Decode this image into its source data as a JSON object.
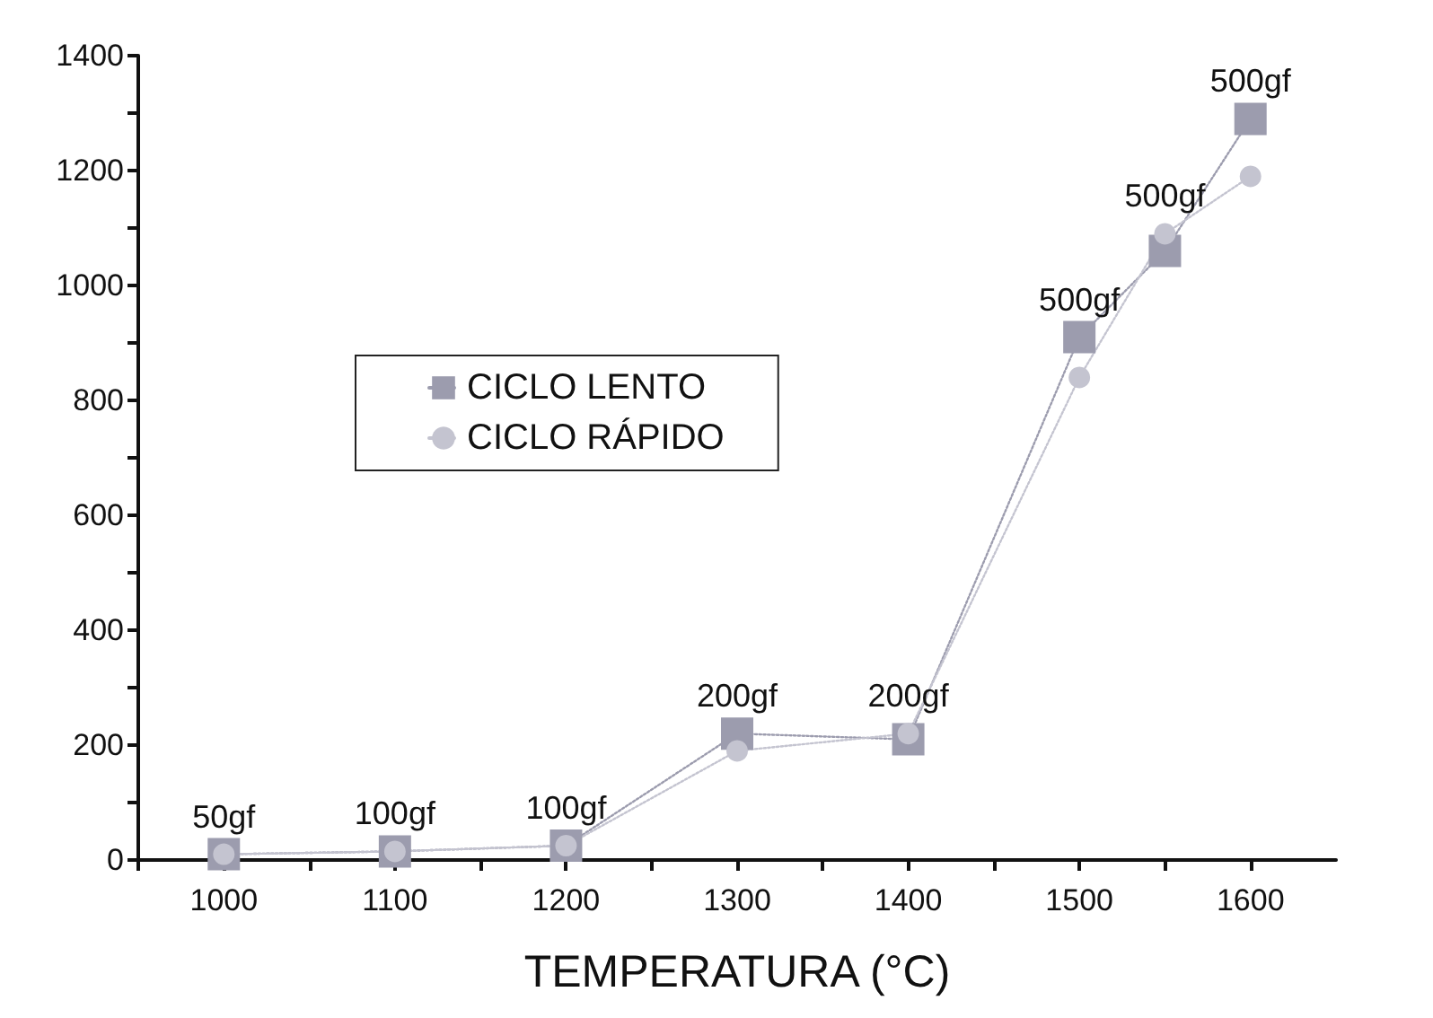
{
  "chart_data": {
    "type": "scatter",
    "xlabel": "TEMPERATURA (°C)",
    "x": [
      1000,
      1100,
      1200,
      1300,
      1400,
      1500,
      1550,
      1600
    ],
    "series": [
      {
        "name": "CICLO LENTO",
        "color": "#9c9cae",
        "marker": "square",
        "values": [
          10,
          15,
          25,
          220,
          210,
          910,
          1060,
          1290
        ]
      },
      {
        "name": "CICLO RÁPIDO",
        "color": "#c4c4d0",
        "marker": "circle",
        "values": [
          10,
          15,
          25,
          190,
          220,
          840,
          1090,
          1190
        ]
      }
    ],
    "line_style": "dotted",
    "legend": "left",
    "grid": false,
    "xlim": [
      950,
      1650
    ],
    "xticks": [
      {
        "value": 950,
        "label": null
      },
      1000,
      {
        "value": 1050,
        "label": null
      },
      1100,
      {
        "value": 1150,
        "label": null
      },
      1200,
      {
        "value": 1250,
        "label": null
      },
      1300,
      {
        "value": 1350,
        "label": null
      },
      1400,
      {
        "value": 1450,
        "label": null
      },
      1500,
      {
        "value": 1550,
        "label": null
      },
      1600
    ],
    "ylim": [
      0,
      1400
    ],
    "yticks": [
      0,
      {
        "value": 100,
        "label": null
      },
      200,
      {
        "value": 300,
        "label": null
      },
      400,
      {
        "value": 500,
        "label": null
      },
      600,
      {
        "value": 700,
        "label": null
      },
      800,
      {
        "value": 900,
        "label": null
      },
      1000,
      {
        "value": 1100,
        "label": null
      },
      1200,
      {
        "value": 1300,
        "label": null
      },
      1400
    ],
    "annotations": [
      {
        "text": "50gf",
        "x": 1000,
        "y": 10
      },
      {
        "text": "100gf",
        "x": 1100,
        "y": 15
      },
      {
        "text": "100gf",
        "x": 1200,
        "y": 25
      },
      {
        "text": "200gf",
        "x": 1300,
        "y": 220
      },
      {
        "text": "200gf",
        "x": 1400,
        "y": 220
      },
      {
        "text": "500gf",
        "x": 1500,
        "y": 910
      },
      {
        "text": "500gf",
        "x": 1550,
        "y": 1090
      },
      {
        "text": "500gf",
        "x": 1600,
        "y": 1290
      }
    ]
  }
}
